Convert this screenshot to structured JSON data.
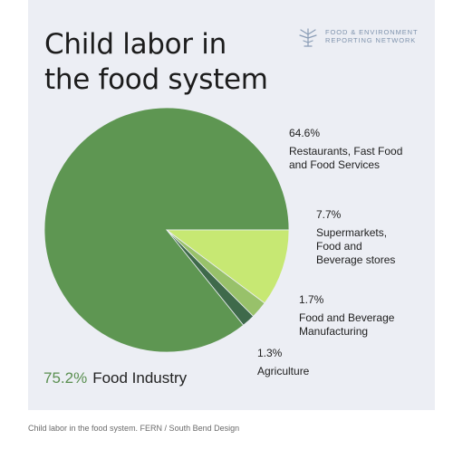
{
  "header": {
    "title_line1": "Child labor in",
    "title_line2": "the food system",
    "logo_line1": "FOOD & ENVIRONMENT",
    "logo_line2": "REPORTING NETWORK",
    "logo_icon": "tree-icon"
  },
  "chart_data": {
    "type": "pie",
    "title": "Child labor in the food system",
    "total_label": "Food Industry",
    "total_value": "75.2%",
    "slices": [
      {
        "label": "Restaurants, Fast Food and Food Services",
        "value": 64.6,
        "value_label": "64.6%",
        "color": "#5e9652"
      },
      {
        "label": "Supermarkets, Food and Beverage stores",
        "value": 7.7,
        "value_label": "7.7%",
        "color": "#c7e873"
      },
      {
        "label": "Food and Beverage Manufacturing",
        "value": 1.7,
        "value_label": "1.7%",
        "color": "#98c16a"
      },
      {
        "label": "Agriculture",
        "value": 1.3,
        "value_label": "1.3%",
        "color": "#3f6a4b"
      }
    ],
    "colors": {
      "background": "#eceef4",
      "accent": "#5a8f50"
    }
  },
  "caption": "Child labor in the food system. FERN / South Bend Design"
}
